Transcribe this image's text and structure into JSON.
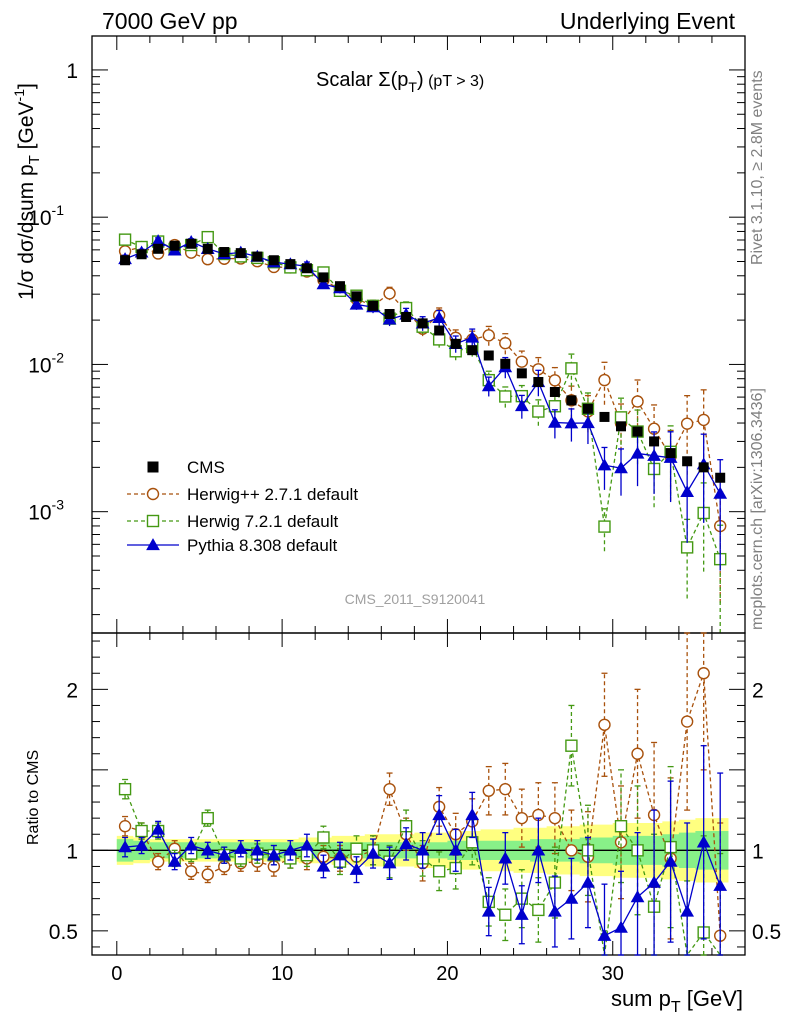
{
  "header": {
    "left": "7000 GeV pp",
    "right": "Underlying Event"
  },
  "side_labels": {
    "upper": "Rivet 3.1.10, ≥ 2.8M events",
    "lower": "mcplots.cern.ch [arXiv:1306.3436]"
  },
  "watermark": "CMS_2011_S9120041",
  "chart_data": {
    "type": "scatter",
    "title": {
      "main": "Scalar Σ(p",
      "sub": "T",
      "close": ")",
      "cut": " (pT >  3)"
    },
    "xlabel": {
      "main": "sum p",
      "sub": "T",
      "unit": " [GeV]"
    },
    "ylabel": "1/σ dσ/dsum p_T [GeV^-1]",
    "ylabel_parts": {
      "a": "1/σ dσ/dsum p",
      "sub": "T",
      "b": " [GeV",
      "sup": "-1",
      "c": "]"
    },
    "ratio_ylabel": "Ratio to CMS",
    "xlim": [
      -1.5,
      38.0
    ],
    "ylim_main": [
      0.00015,
      1.7
    ],
    "y_log": true,
    "ylim_ratio": [
      0.35,
      2.35
    ],
    "x_ticks": [
      "0",
      "10",
      "20",
      "30"
    ],
    "y_ticks_main": [
      {
        "value": 1,
        "base": "1",
        "exp": ""
      },
      {
        "value": 0.1,
        "base": "10",
        "exp": "-1"
      },
      {
        "value": 0.01,
        "base": "10",
        "exp": "-2"
      },
      {
        "value": 0.001,
        "base": "10",
        "exp": "-3"
      }
    ],
    "y_ticks_ratio": [
      "0.5",
      "1",
      "2"
    ],
    "x": [
      0.5,
      1.5,
      2.5,
      3.5,
      4.5,
      5.5,
      6.5,
      7.5,
      8.5,
      9.5,
      10.5,
      11.5,
      12.5,
      13.5,
      14.5,
      15.5,
      16.5,
      17.5,
      18.5,
      19.5,
      20.5,
      21.5,
      22.5,
      23.5,
      24.5,
      25.5,
      26.5,
      27.5,
      28.5,
      29.5,
      30.5,
      31.5,
      32.5,
      33.5,
      34.5,
      35.5,
      36.5
    ],
    "legend": [
      "CMS",
      "Herwig++ 2.7.1 default",
      "Herwig 7.2.1 default",
      "Pythia 8.308 default"
    ],
    "series": [
      {
        "name": "CMS",
        "color": "#000000",
        "marker": "square-filled",
        "values": [
          0.051,
          0.056,
          0.061,
          0.064,
          0.066,
          0.061,
          0.058,
          0.057,
          0.054,
          0.051,
          0.048,
          0.045,
          0.039,
          0.034,
          0.029,
          0.025,
          0.022,
          0.021,
          0.019,
          0.017,
          0.0138,
          0.0125,
          0.0115,
          0.0101,
          0.0087,
          0.0076,
          0.0065,
          0.0057,
          0.005,
          0.0044,
          0.0038,
          0.0035,
          0.003,
          0.0025,
          0.0022,
          0.002,
          0.0017
        ],
        "ratio_band_inner": [
          0.07,
          0.06,
          0.05,
          0.05,
          0.05,
          0.05,
          0.05,
          0.05,
          0.05,
          0.05,
          0.05,
          0.05,
          0.05,
          0.05,
          0.05,
          0.05,
          0.05,
          0.05,
          0.05,
          0.05,
          0.06,
          0.06,
          0.06,
          0.06,
          0.06,
          0.07,
          0.07,
          0.07,
          0.08,
          0.08,
          0.09,
          0.09,
          0.09,
          0.1,
          0.11,
          0.12,
          0.12
        ],
        "ratio_band_outer": [
          0.09,
          0.08,
          0.07,
          0.07,
          0.07,
          0.07,
          0.07,
          0.07,
          0.07,
          0.07,
          0.07,
          0.08,
          0.08,
          0.09,
          0.09,
          0.1,
          0.1,
          0.1,
          0.11,
          0.11,
          0.12,
          0.12,
          0.13,
          0.13,
          0.14,
          0.14,
          0.15,
          0.15,
          0.16,
          0.16,
          0.17,
          0.17,
          0.17,
          0.18,
          0.19,
          0.2,
          0.2
        ]
      },
      {
        "name": "Herwig++ 2.7.1 default",
        "color": "#a8510c",
        "marker": "circle-open",
        "dash": "dashed",
        "ratio": [
          1.15,
          1.12,
          0.93,
          1.01,
          0.87,
          0.85,
          0.9,
          0.92,
          0.93,
          0.9,
          0.95,
          0.95,
          0.96,
          0.95,
          0.96,
          1.0,
          1.38,
          1.1,
          0.92,
          1.27,
          1.1,
          1.18,
          1.37,
          1.38,
          1.2,
          1.22,
          1.2,
          1.0,
          0.96,
          1.78,
          1.05,
          1.6,
          1.22,
          0.95,
          1.8,
          2.1,
          0.47
        ],
        "ratio_err": [
          0.06,
          0.05,
          0.05,
          0.05,
          0.05,
          0.05,
          0.05,
          0.05,
          0.06,
          0.06,
          0.06,
          0.07,
          0.07,
          0.08,
          0.08,
          0.09,
          0.1,
          0.1,
          0.11,
          0.12,
          0.13,
          0.14,
          0.15,
          0.16,
          0.18,
          0.2,
          0.22,
          0.25,
          0.28,
          0.32,
          0.35,
          0.4,
          0.45,
          0.5,
          0.55,
          0.6,
          0.7
        ]
      },
      {
        "name": "Herwig 7.2.1 default",
        "color": "#449913",
        "marker": "square-open",
        "dash": "dashed",
        "ratio": [
          1.38,
          1.12,
          1.12,
          0.95,
          0.98,
          1.2,
          0.97,
          0.95,
          0.98,
          0.97,
          0.95,
          0.97,
          1.08,
          0.93,
          1.01,
          1.0,
          0.93,
          1.15,
          0.95,
          0.87,
          0.89,
          1.05,
          0.68,
          0.6,
          0.7,
          0.63,
          0.8,
          1.65,
          1.0,
          0.18,
          1.15,
          1.0,
          0.65,
          1.02,
          0.26,
          0.49,
          0.28
        ],
        "ratio_err": [
          0.06,
          0.05,
          0.05,
          0.05,
          0.05,
          0.05,
          0.05,
          0.05,
          0.06,
          0.06,
          0.06,
          0.07,
          0.07,
          0.08,
          0.08,
          0.09,
          0.1,
          0.1,
          0.11,
          0.12,
          0.13,
          0.14,
          0.15,
          0.16,
          0.18,
          0.2,
          0.22,
          0.25,
          0.28,
          0.32,
          0.35,
          0.4,
          0.45,
          0.5,
          0.55,
          0.6,
          0.7
        ]
      },
      {
        "name": "Pythia 8.308 default",
        "color": "#0000cc",
        "marker": "triangle-filled",
        "line": "solid",
        "ratio": [
          1.02,
          1.03,
          1.13,
          0.93,
          1.03,
          1.0,
          0.97,
          1.01,
          1.0,
          0.97,
          1.0,
          1.03,
          0.9,
          0.97,
          0.88,
          0.98,
          0.92,
          1.04,
          1.0,
          1.22,
          1.0,
          1.22,
          0.62,
          0.95,
          0.6,
          1.0,
          0.62,
          0.7,
          0.8,
          0.47,
          0.52,
          0.71,
          0.8,
          0.93,
          0.62,
          1.05,
          0.78
        ],
        "ratio_err": [
          0.06,
          0.05,
          0.05,
          0.05,
          0.05,
          0.05,
          0.05,
          0.05,
          0.06,
          0.06,
          0.06,
          0.07,
          0.07,
          0.08,
          0.08,
          0.09,
          0.1,
          0.1,
          0.11,
          0.12,
          0.13,
          0.14,
          0.15,
          0.16,
          0.18,
          0.2,
          0.22,
          0.25,
          0.28,
          0.32,
          0.35,
          0.4,
          0.45,
          0.5,
          0.55,
          0.6,
          0.7
        ]
      }
    ]
  }
}
